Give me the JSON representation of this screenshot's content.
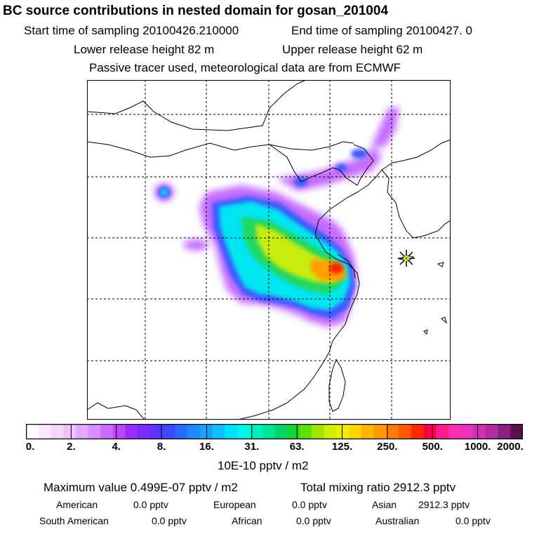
{
  "header": {
    "title": "BC  source contributions in nested domain for gosan_201004",
    "start_time": "Start time of sampling 20100426.210000",
    "end_time": "End time of sampling 20100427.     0",
    "lower_release": "Lower release height   82 m",
    "upper_release": "Upper release height   62 m",
    "note": "Passive tracer used, meteorological data are from ECMWF"
  },
  "colorbar": {
    "tick_labels": [
      "0.",
      "2.",
      "4.",
      "8.",
      "16.",
      "31.",
      "63.",
      "125.",
      "250.",
      "500.",
      "1000.",
      "2000."
    ],
    "unit_label": "10E-10 pptv / m2",
    "colors": [
      "#ffffff",
      "#fbe8ff",
      "#f5d6ff",
      "#efc2ff",
      "#e3a8ff",
      "#d98cff",
      "#cc6cff",
      "#bb44ff",
      "#9b2bff",
      "#7a2cff",
      "#5a35ff",
      "#3c49ff",
      "#2a6aff",
      "#1e89ff",
      "#16a3ff",
      "#10bfff",
      "#00e0ff",
      "#00f5ee",
      "#00f0c0",
      "#00e69a",
      "#00d96a",
      "#10d830",
      "#5ee000",
      "#a0e800",
      "#d0ee00",
      "#f0ee00",
      "#ffd400",
      "#ffb400",
      "#ff9800",
      "#ff7a00",
      "#ff5a00",
      "#ff2a00",
      "#ff0046",
      "#ff1a8c",
      "#ff2db2",
      "#ee2fbf",
      "#d22fb4",
      "#b42a9f",
      "#8c1f80",
      "#5a1050"
    ]
  },
  "summary": {
    "max_value": "Maximum value  0.499E-07 pptv / m2",
    "total_mixing": "Total mixing ratio      2912.3 pptv",
    "stats": [
      {
        "label": "American",
        "value": "0.0 pptv"
      },
      {
        "label": "European",
        "value": "0.0 pptv"
      },
      {
        "label": "Asian",
        "value": "2912.3 pptv"
      },
      {
        "label": "South American",
        "value": "0.0 pptv"
      },
      {
        "label": "African",
        "value": "0.0 pptv"
      },
      {
        "label": "Australian",
        "value": "0.0 pptv"
      }
    ]
  }
}
